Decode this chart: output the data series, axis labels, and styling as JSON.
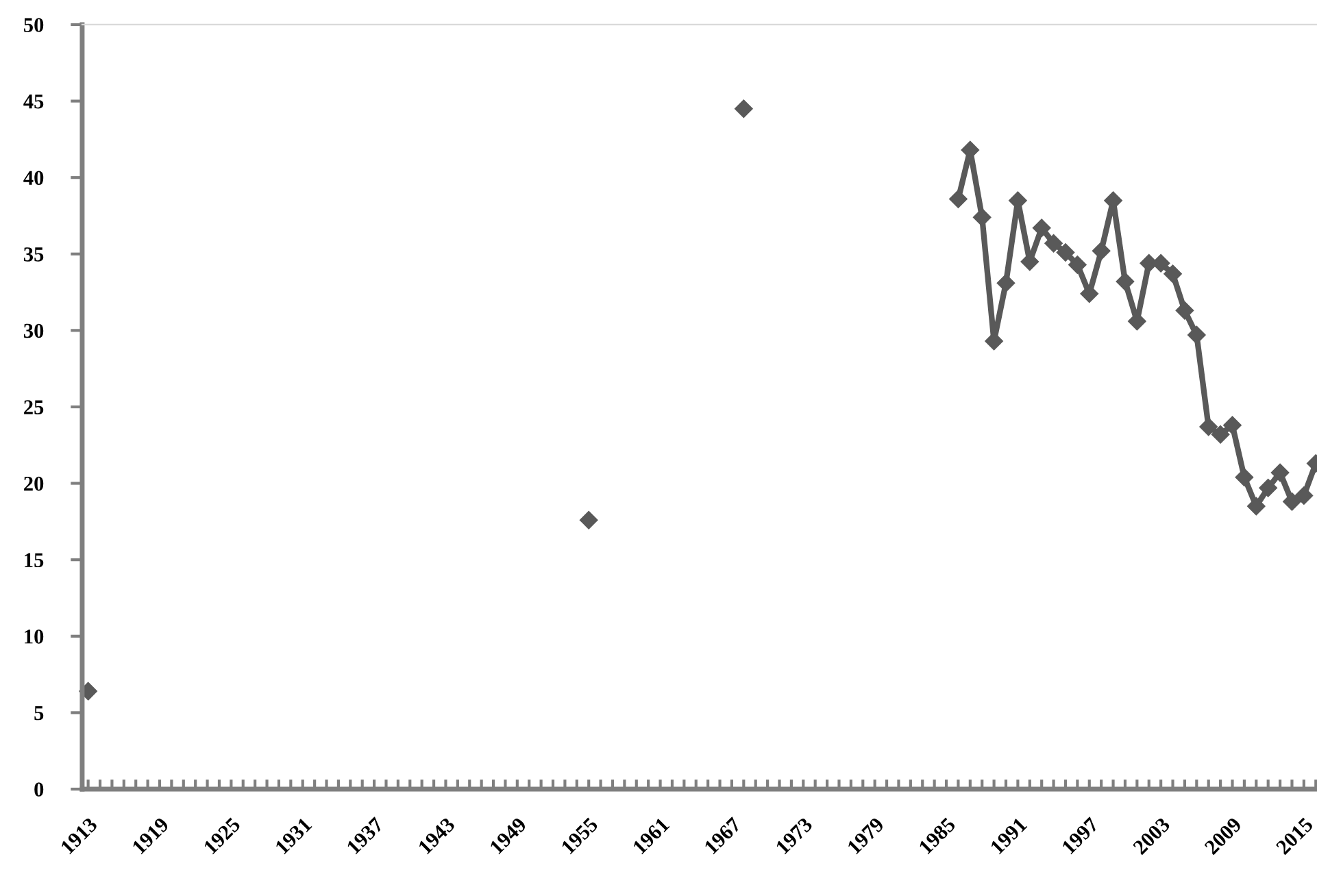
{
  "chart_data": {
    "type": "line",
    "x": [
      1913,
      1914,
      1915,
      1916,
      1917,
      1918,
      1919,
      1920,
      1921,
      1922,
      1923,
      1924,
      1925,
      1926,
      1927,
      1928,
      1929,
      1930,
      1931,
      1932,
      1933,
      1934,
      1935,
      1936,
      1937,
      1938,
      1939,
      1940,
      1941,
      1942,
      1943,
      1944,
      1945,
      1946,
      1947,
      1948,
      1949,
      1950,
      1951,
      1952,
      1953,
      1954,
      1955,
      1956,
      1957,
      1958,
      1959,
      1960,
      1961,
      1962,
      1963,
      1964,
      1965,
      1966,
      1967,
      1968,
      1969,
      1970,
      1971,
      1972,
      1973,
      1974,
      1975,
      1976,
      1977,
      1978,
      1979,
      1980,
      1981,
      1982,
      1983,
      1984,
      1985,
      1986,
      1987,
      1988,
      1989,
      1990,
      1991,
      1992,
      1993,
      1994,
      1995,
      1996,
      1997,
      1998,
      1999,
      2000,
      2001,
      2002,
      2003,
      2004,
      2005,
      2006,
      2007,
      2008,
      2009,
      2010,
      2011,
      2012,
      2013,
      2014,
      2015,
      2016
    ],
    "series": [
      {
        "color": "#595959",
        "values": [
          6.4,
          null,
          null,
          null,
          null,
          null,
          null,
          null,
          null,
          null,
          null,
          null,
          null,
          null,
          null,
          null,
          null,
          null,
          null,
          null,
          null,
          null,
          null,
          null,
          null,
          null,
          null,
          null,
          null,
          null,
          null,
          null,
          null,
          null,
          null,
          null,
          null,
          null,
          null,
          null,
          null,
          null,
          17.6,
          null,
          null,
          null,
          null,
          null,
          null,
          null,
          null,
          null,
          null,
          null,
          null,
          44.5,
          null,
          null,
          null,
          null,
          null,
          null,
          null,
          null,
          null,
          null,
          null,
          null,
          null,
          null,
          null,
          null,
          null,
          38.6,
          41.8,
          37.4,
          29.3,
          33.1,
          38.5,
          34.5,
          36.7,
          35.7,
          35.1,
          34.3,
          32.4,
          35.2,
          38.5,
          33.2,
          30.6,
          34.4,
          34.4,
          33.7,
          31.3,
          29.7,
          23.7,
          23.2,
          23.8,
          20.4,
          18.5,
          19.7,
          20.7,
          18.8,
          19.2,
          21.3
        ]
      }
    ],
    "marker": "diamond",
    "line_style": "solid",
    "grid": false,
    "legend": false,
    "xlim": [
      1912.5,
      2016.1
    ],
    "ylim": [
      0,
      50
    ],
    "yticks": [
      0,
      5,
      10,
      15,
      20,
      25,
      30,
      35,
      40,
      45,
      50
    ],
    "xticks": [
      1913,
      {
        "value": 1914,
        "label": null
      },
      {
        "value": 1915,
        "label": null
      },
      {
        "value": 1916,
        "label": null
      },
      {
        "value": 1917,
        "label": null
      },
      {
        "value": 1918,
        "label": null
      },
      1919,
      {
        "value": 1920,
        "label": null
      },
      {
        "value": 1921,
        "label": null
      },
      {
        "value": 1922,
        "label": null
      },
      {
        "value": 1923,
        "label": null
      },
      {
        "value": 1924,
        "label": null
      },
      1925,
      {
        "value": 1926,
        "label": null
      },
      {
        "value": 1927,
        "label": null
      },
      {
        "value": 1928,
        "label": null
      },
      {
        "value": 1929,
        "label": null
      },
      {
        "value": 1930,
        "label": null
      },
      1931,
      {
        "value": 1932,
        "label": null
      },
      {
        "value": 1933,
        "label": null
      },
      {
        "value": 1934,
        "label": null
      },
      {
        "value": 1935,
        "label": null
      },
      {
        "value": 1936,
        "label": null
      },
      1937,
      {
        "value": 1938,
        "label": null
      },
      {
        "value": 1939,
        "label": null
      },
      {
        "value": 1940,
        "label": null
      },
      {
        "value": 1941,
        "label": null
      },
      {
        "value": 1942,
        "label": null
      },
      1943,
      {
        "value": 1944,
        "label": null
      },
      {
        "value": 1945,
        "label": null
      },
      {
        "value": 1946,
        "label": null
      },
      {
        "value": 1947,
        "label": null
      },
      {
        "value": 1948,
        "label": null
      },
      1949,
      {
        "value": 1950,
        "label": null
      },
      {
        "value": 1951,
        "label": null
      },
      {
        "value": 1952,
        "label": null
      },
      {
        "value": 1953,
        "label": null
      },
      {
        "value": 1954,
        "label": null
      },
      1955,
      {
        "value": 1956,
        "label": null
      },
      {
        "value": 1957,
        "label": null
      },
      {
        "value": 1958,
        "label": null
      },
      {
        "value": 1959,
        "label": null
      },
      {
        "value": 1960,
        "label": null
      },
      1961,
      {
        "value": 1962,
        "label": null
      },
      {
        "value": 1963,
        "label": null
      },
      {
        "value": 1964,
        "label": null
      },
      {
        "value": 1965,
        "label": null
      },
      {
        "value": 1966,
        "label": null
      },
      1967,
      {
        "value": 1968,
        "label": null
      },
      {
        "value": 1969,
        "label": null
      },
      {
        "value": 1970,
        "label": null
      },
      {
        "value": 1971,
        "label": null
      },
      {
        "value": 1972,
        "label": null
      },
      1973,
      {
        "value": 1974,
        "label": null
      },
      {
        "value": 1975,
        "label": null
      },
      {
        "value": 1976,
        "label": null
      },
      {
        "value": 1977,
        "label": null
      },
      {
        "value": 1978,
        "label": null
      },
      1979,
      {
        "value": 1980,
        "label": null
      },
      {
        "value": 1981,
        "label": null
      },
      {
        "value": 1982,
        "label": null
      },
      {
        "value": 1983,
        "label": null
      },
      {
        "value": 1984,
        "label": null
      },
      1985,
      {
        "value": 1986,
        "label": null
      },
      {
        "value": 1987,
        "label": null
      },
      {
        "value": 1988,
        "label": null
      },
      {
        "value": 1989,
        "label": null
      },
      {
        "value": 1990,
        "label": null
      },
      1991,
      {
        "value": 1992,
        "label": null
      },
      {
        "value": 1993,
        "label": null
      },
      {
        "value": 1994,
        "label": null
      },
      {
        "value": 1995,
        "label": null
      },
      {
        "value": 1996,
        "label": null
      },
      1997,
      {
        "value": 1998,
        "label": null
      },
      {
        "value": 1999,
        "label": null
      },
      {
        "value": 2000,
        "label": null
      },
      {
        "value": 2001,
        "label": null
      },
      {
        "value": 2002,
        "label": null
      },
      2003,
      {
        "value": 2004,
        "label": null
      },
      {
        "value": 2005,
        "label": null
      },
      {
        "value": 2006,
        "label": null
      },
      {
        "value": 2007,
        "label": null
      },
      {
        "value": 2008,
        "label": null
      },
      2009,
      {
        "value": 2010,
        "label": null
      },
      {
        "value": 2011,
        "label": null
      },
      {
        "value": 2012,
        "label": null
      },
      {
        "value": 2013,
        "label": null
      },
      {
        "value": 2014,
        "label": null
      },
      2015,
      {
        "value": 2016,
        "label": null
      }
    ]
  }
}
